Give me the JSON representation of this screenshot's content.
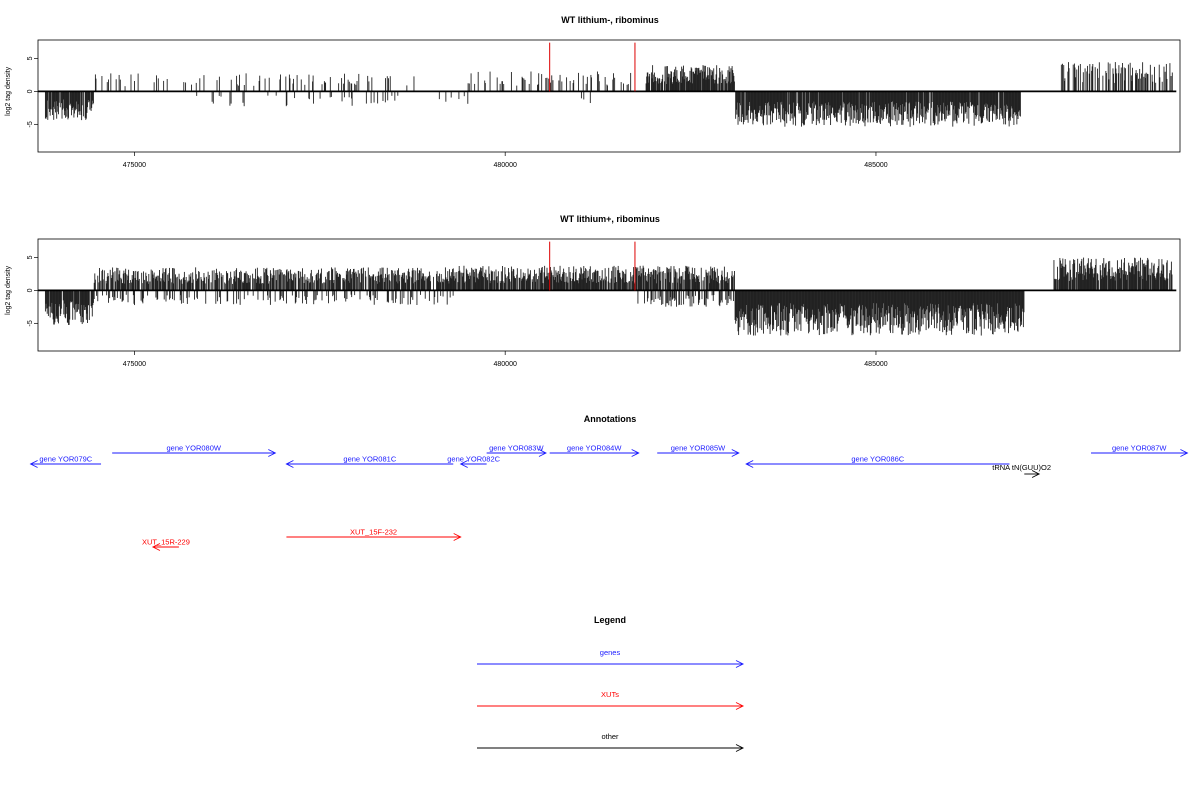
{
  "chart_data": [
    {
      "type": "bar",
      "title": "WT lithium-, ribominus",
      "ylabel": "log2 tag density",
      "xlabel": "",
      "xlim": [
        473700,
        489100
      ],
      "ylim": [
        -9.2,
        7.8
      ],
      "x_ticks": [
        475000,
        480000,
        485000
      ],
      "x_tick_labels": [
        "475000",
        "480000",
        "485000"
      ],
      "y_ticks": [
        5,
        0,
        -5
      ],
      "y_tick_labels": [
        "5",
        "0",
        "-5"
      ],
      "bar_color": "#222222",
      "segments": [
        {
          "from": 473800,
          "to": 474450,
          "sign": -1,
          "density": 0.85,
          "amp": 3.5
        },
        {
          "from": 474450,
          "to": 478800,
          "sign": 1,
          "density": 0.12,
          "amp": 2.2
        },
        {
          "from": 475800,
          "to": 479500,
          "sign": -1,
          "density": 0.08,
          "amp": 1.8
        },
        {
          "from": 479500,
          "to": 481700,
          "sign": 1,
          "density": 0.22,
          "amp": 2.5
        },
        {
          "from": 480900,
          "to": 481300,
          "sign": -1,
          "density": 0.1,
          "amp": 1.8
        },
        {
          "from": 481900,
          "to": 483100,
          "sign": 1,
          "density": 0.85,
          "amp": 3.2
        },
        {
          "from": 483100,
          "to": 486950,
          "sign": -1,
          "density": 0.95,
          "amp": 4.3
        },
        {
          "from": 487500,
          "to": 489000,
          "sign": 1,
          "density": 0.45,
          "amp": 3.6
        }
      ],
      "highlight_lines": [
        {
          "x": 480600,
          "y": 7.4,
          "color": "#dd0000"
        },
        {
          "x": 481750,
          "y": 7.4,
          "color": "#dd0000"
        }
      ],
      "seed": 7
    },
    {
      "type": "bar",
      "title": "WT lithium+, ribominus",
      "ylabel": "log2 tag density",
      "xlabel": "",
      "xlim": [
        473700,
        489100
      ],
      "ylim": [
        -9.2,
        7.8
      ],
      "x_ticks": [
        475000,
        480000,
        485000
      ],
      "x_tick_labels": [
        "475000",
        "480000",
        "485000"
      ],
      "y_ticks": [
        5,
        0,
        -5
      ],
      "y_tick_labels": [
        "5",
        "0",
        "-5"
      ],
      "bar_color": "#222222",
      "segments": [
        {
          "from": 473800,
          "to": 474450,
          "sign": -1,
          "density": 0.95,
          "amp": 4.2
        },
        {
          "from": 474450,
          "to": 479300,
          "sign": 1,
          "density": 0.75,
          "amp": 2.8
        },
        {
          "from": 474450,
          "to": 479300,
          "sign": -1,
          "density": 0.25,
          "amp": 1.8
        },
        {
          "from": 479300,
          "to": 483100,
          "sign": 1,
          "density": 0.8,
          "amp": 3.0
        },
        {
          "from": 481750,
          "to": 483100,
          "sign": -1,
          "density": 0.3,
          "amp": 2.0
        },
        {
          "from": 483100,
          "to": 487000,
          "sign": -1,
          "density": 1.0,
          "amp": 5.5
        },
        {
          "from": 487400,
          "to": 489000,
          "sign": 1,
          "density": 0.9,
          "amp": 4.0
        }
      ],
      "highlight_lines": [
        {
          "x": 480600,
          "y": 7.4,
          "color": "#dd0000"
        },
        {
          "x": 481750,
          "y": 7.4,
          "color": "#dd0000"
        }
      ],
      "seed": 13
    }
  ],
  "annotations": {
    "title": "Annotations",
    "colors": {
      "genes": "#1a1aff",
      "xuts": "#ff0000",
      "other": "#000000"
    },
    "features": [
      {
        "label": "gene YOR079C",
        "start": 473600,
        "end": 474550,
        "strand": "-",
        "category": "genes",
        "row": 1
      },
      {
        "label": "gene YOR080W",
        "start": 474700,
        "end": 476900,
        "strand": "+",
        "category": "genes",
        "row": 0
      },
      {
        "label": "gene YOR081C",
        "start": 477050,
        "end": 479300,
        "strand": "-",
        "category": "genes",
        "row": 1
      },
      {
        "label": "gene YOR082C",
        "start": 479400,
        "end": 479750,
        "strand": "-",
        "category": "genes",
        "row": 1
      },
      {
        "label": "gene YOR083W",
        "start": 479750,
        "end": 480550,
        "strand": "+",
        "category": "genes",
        "row": 0
      },
      {
        "label": "gene YOR084W",
        "start": 480600,
        "end": 481800,
        "strand": "+",
        "category": "genes",
        "row": 0
      },
      {
        "label": "gene YOR085W",
        "start": 482050,
        "end": 483150,
        "strand": "+",
        "category": "genes",
        "row": 0
      },
      {
        "label": "gene YOR086C",
        "start": 483250,
        "end": 486800,
        "strand": "-",
        "category": "genes",
        "row": 1
      },
      {
        "label": "tRNA tN(GUU)O2",
        "start": 487000,
        "end": 487200,
        "strand": "+",
        "category": "other",
        "row": 2
      },
      {
        "label": "gene YOR087W",
        "start": 487900,
        "end": 489200,
        "strand": "+",
        "category": "genes",
        "row": 0
      },
      {
        "label": "XUT_15R-229",
        "start": 475250,
        "end": 475600,
        "strand": "-",
        "category": "xuts",
        "row": 4
      },
      {
        "label": "XUT_15F-232",
        "start": 477050,
        "end": 479400,
        "strand": "+",
        "category": "xuts",
        "row": 3
      }
    ]
  },
  "legend": {
    "title": "Legend",
    "items": [
      {
        "label": "genes",
        "color": "#1a1aff"
      },
      {
        "label": "XUTs",
        "color": "#ff0000"
      },
      {
        "label": "other",
        "color": "#000000"
      }
    ]
  }
}
